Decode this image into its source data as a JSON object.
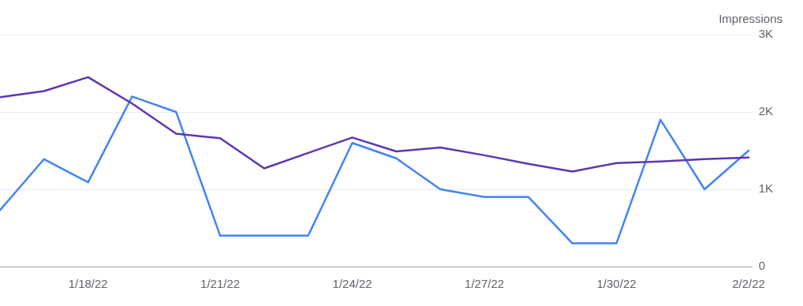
{
  "chart_data": {
    "type": "line",
    "ylabel": "Impressions",
    "x": [
      "--01-16",
      "--01-17",
      "--01-18",
      "--01-19",
      "--01-20",
      "--01-21",
      "--01-22",
      "--01-23",
      "--01-24",
      "--01-25",
      "--01-26",
      "--01-27",
      "--01-28",
      "--01-29",
      "--01-30",
      "--01-31",
      "--02-01",
      "--02-02"
    ],
    "series": [
      {
        "color": "#5e35b1",
        "values": [
          2190,
          2270,
          2450,
          2110,
          1720,
          1660,
          1270,
          1470,
          1670,
          1490,
          1540,
          1440,
          1330,
          1230,
          1340,
          1360,
          1390,
          1410
        ]
      },
      {
        "color": "#4285f4",
        "values": [
          730,
          1390,
          1090,
          2200,
          2000,
          400,
          400,
          400,
          1600,
          1400,
          1000,
          900,
          900,
          300,
          300,
          1900,
          1000,
          1500
        ]
      }
    ],
    "xlim": [
      "--01-16",
      "--02-02T02:00"
    ],
    "xticks": [
      {
        "value": "--01-18",
        "label": "1/18/22"
      },
      {
        "value": "--01-21",
        "label": "1/21/22"
      },
      {
        "value": "--01-24",
        "label": "1/24/22"
      },
      {
        "value": "--01-27",
        "label": "1/27/22"
      },
      {
        "value": "--01-30",
        "label": "1/30/22"
      },
      {
        "value": "--02-02",
        "label": "2/2/22"
      }
    ],
    "ylim": [
      0,
      3000
    ],
    "yticks": [
      0,
      {
        "value": 1000,
        "label": "1K"
      },
      {
        "value": 2000,
        "label": "2K"
      },
      {
        "value": 3000,
        "label": "3K"
      }
    ],
    "grid": "y",
    "marker": "none",
    "line_style": "solid",
    "legend": false
  }
}
